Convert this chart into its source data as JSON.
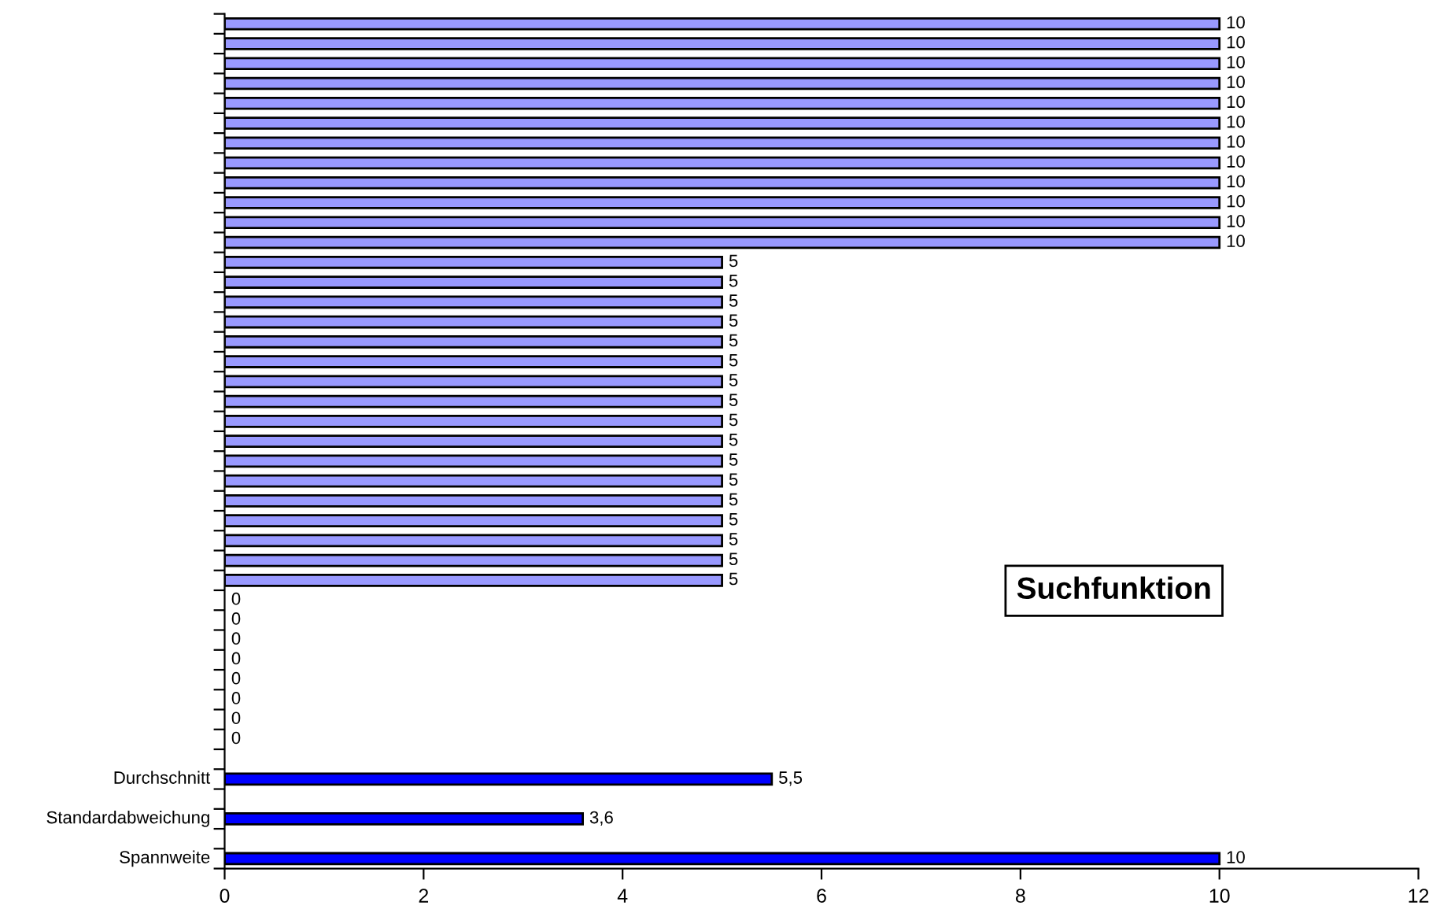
{
  "chart_data": {
    "type": "bar",
    "orientation": "horizontal",
    "categories": [
      null,
      null,
      null,
      null,
      null,
      null,
      null,
      null,
      null,
      null,
      null,
      null,
      null,
      null,
      null,
      null,
      null,
      null,
      null,
      null,
      null,
      null,
      null,
      null,
      null,
      null,
      null,
      null,
      null,
      null,
      null,
      null,
      null,
      null,
      null,
      null,
      null,
      null,
      "Durchschnitt",
      null,
      "Standardabweichung",
      null,
      "Spannweite"
    ],
    "values": [
      10,
      10,
      10,
      10,
      10,
      10,
      10,
      10,
      10,
      10,
      10,
      10,
      5,
      5,
      5,
      5,
      5,
      5,
      5,
      5,
      5,
      5,
      5,
      5,
      5,
      5,
      5,
      5,
      5,
      0,
      0,
      0,
      0,
      0,
      0,
      0,
      0,
      null,
      5.5,
      null,
      3.6,
      null,
      10
    ],
    "value_labels": [
      "10",
      "10",
      "10",
      "10",
      "10",
      "10",
      "10",
      "10",
      "10",
      "10",
      "10",
      "10",
      "5",
      "5",
      "5",
      "5",
      "5",
      "5",
      "5",
      "5",
      "5",
      "5",
      "5",
      "5",
      "5",
      "5",
      "5",
      "5",
      "5",
      "0",
      "0",
      "0",
      "0",
      "0",
      "0",
      "0",
      "0",
      null,
      "5,5",
      null,
      "3,6",
      null,
      "10"
    ],
    "colors": [
      "#9999ff",
      "#9999ff",
      "#9999ff",
      "#9999ff",
      "#9999ff",
      "#9999ff",
      "#9999ff",
      "#9999ff",
      "#9999ff",
      "#9999ff",
      "#9999ff",
      "#9999ff",
      "#9999ff",
      "#9999ff",
      "#9999ff",
      "#9999ff",
      "#9999ff",
      "#9999ff",
      "#9999ff",
      "#9999ff",
      "#9999ff",
      "#9999ff",
      "#9999ff",
      "#9999ff",
      "#9999ff",
      "#9999ff",
      "#9999ff",
      "#9999ff",
      "#9999ff",
      "#9999ff",
      "#9999ff",
      "#9999ff",
      "#9999ff",
      "#9999ff",
      "#9999ff",
      "#9999ff",
      "#9999ff",
      "#9999ff",
      "#0000ff",
      "#0000ff",
      "#0000ff",
      "#0000ff",
      "#0000ff"
    ],
    "xlim": [
      0,
      12
    ],
    "xticks": [
      0,
      2,
      4,
      6,
      8,
      10,
      12
    ],
    "grid": false,
    "annotations": [
      "Suchfunktion"
    ]
  }
}
